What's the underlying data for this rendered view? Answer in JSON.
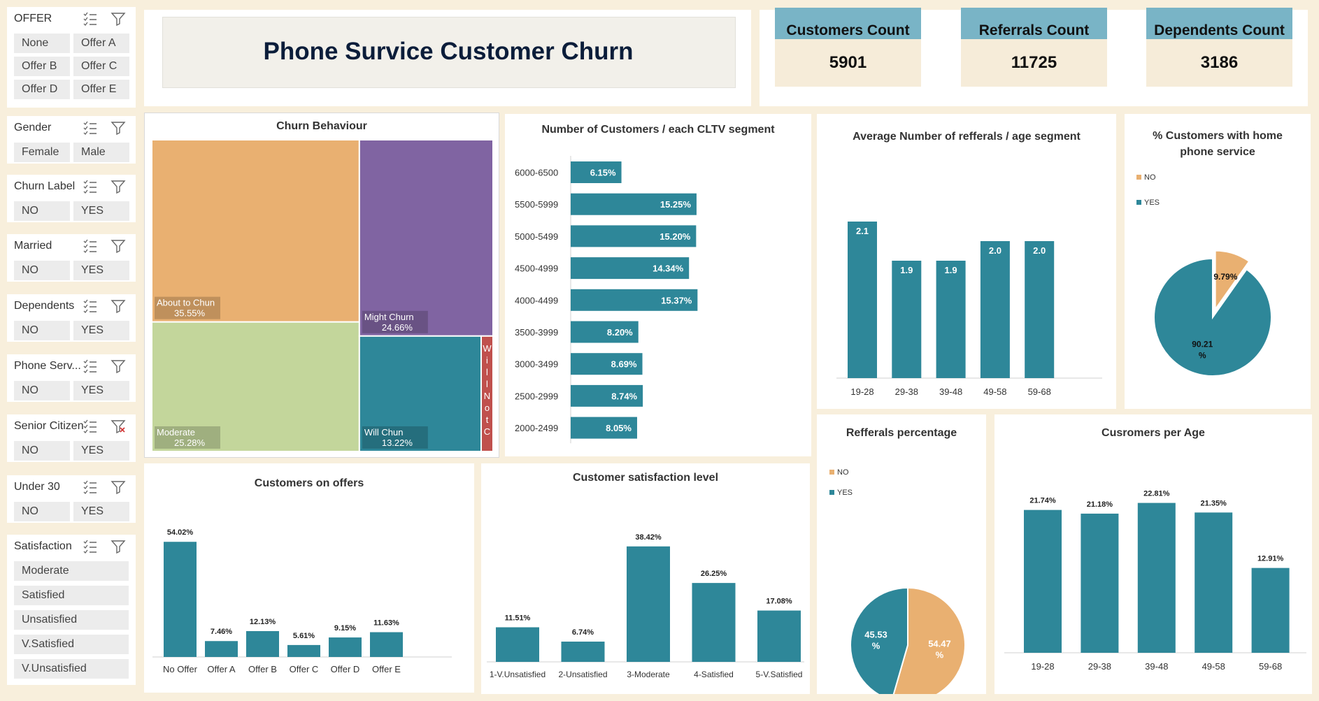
{
  "title": "Phone Survice Customer Churn",
  "colors": {
    "teal": "#2e8799",
    "orange": "#e9b071",
    "purple": "#8064a2",
    "green": "#c3d69b",
    "red": "#c0504d",
    "kpi_head": "#79b4c6",
    "kpi_body": "#f6ecd9"
  },
  "slicers": [
    {
      "header": "OFFER",
      "items": [
        "None",
        "Offer A",
        "Offer B",
        "Offer C",
        "Offer D",
        "Offer E"
      ]
    },
    {
      "header": "Gender",
      "items": [
        "Female",
        "Male"
      ]
    },
    {
      "header": "Churn Label",
      "items": [
        "NO",
        "YES"
      ]
    },
    {
      "header": "Married",
      "items": [
        "NO",
        "YES"
      ]
    },
    {
      "header": "Dependents",
      "items": [
        "NO",
        "YES"
      ]
    },
    {
      "header": "Phone Serv...",
      "items": [
        "NO",
        "YES"
      ]
    },
    {
      "header": "Senior Citizen",
      "items": [
        "NO",
        "YES"
      ]
    },
    {
      "header": "Under 30",
      "items": [
        "NO",
        "YES"
      ]
    },
    {
      "header": "Satisfaction",
      "items": [
        "Moderate",
        "Satisfied",
        "Unsatisfied",
        "V.Satisfied",
        "V.Unsatisfied"
      ]
    }
  ],
  "kpis": [
    {
      "label": "Customers Count",
      "value": "5901"
    },
    {
      "label": "Referrals Count",
      "value": "11725"
    },
    {
      "label": "Dependents Count",
      "value": "3186"
    }
  ],
  "chart_data": [
    {
      "id": "churn-treemap",
      "type": "treemap",
      "title": "Churn Behaviour",
      "items": [
        {
          "label": "About to Chun",
          "value": 35.55,
          "text": "35.55%"
        },
        {
          "label": "Moderate",
          "value": 25.28,
          "text": "25.28%"
        },
        {
          "label": "Might Churn",
          "value": 24.66,
          "text": "24.66%"
        },
        {
          "label": "Will Chun",
          "value": 13.22,
          "text": "13.22%"
        },
        {
          "label": "Will Not C",
          "value": 1.29
        }
      ]
    },
    {
      "id": "cltv",
      "type": "bar",
      "orientation": "horizontal",
      "title": "Number of Customers / each CLTV segment",
      "categories": [
        "6000-6500",
        "5500-5999",
        "5000-5499",
        "4500-4999",
        "4000-4499",
        "3500-3999",
        "3000-3499",
        "2500-2999",
        "2000-2499"
      ],
      "values": [
        6.15,
        15.25,
        15.2,
        14.34,
        15.37,
        8.2,
        8.69,
        8.74,
        8.05
      ],
      "labels": [
        "6.15%",
        "15.25%",
        "15.20%",
        "14.34%",
        "15.37%",
        "8.20%",
        "8.69%",
        "8.74%",
        "8.05%"
      ]
    },
    {
      "id": "referrals-age",
      "type": "bar",
      "title": "Average Number of refferals / age segment",
      "categories": [
        "19-28",
        "29-38",
        "39-48",
        "49-58",
        "59-68"
      ],
      "values": [
        2.1,
        1.9,
        1.9,
        2.0,
        2.0
      ],
      "labels": [
        "2.1",
        "1.9",
        "1.9",
        "2.0",
        "2.0"
      ]
    },
    {
      "id": "home-phone",
      "type": "pie",
      "title": "% Customers with home phone service",
      "legend": [
        "NO",
        "YES"
      ],
      "slices": [
        {
          "name": "NO",
          "value": 9.79,
          "text": "9.79%"
        },
        {
          "name": "YES",
          "value": 90.21,
          "text": "90.21 %"
        }
      ]
    },
    {
      "id": "offers",
      "type": "bar",
      "title": "Customers on offers",
      "categories": [
        "No Offer",
        "Offer A",
        "Offer B",
        "Offer C",
        "Offer D",
        "Offer E"
      ],
      "values": [
        54.02,
        7.46,
        12.13,
        5.61,
        9.15,
        11.63
      ],
      "labels": [
        "54.02%",
        "7.46%",
        "12.13%",
        "5.61%",
        "9.15%",
        "11.63%"
      ]
    },
    {
      "id": "satisfaction",
      "type": "bar",
      "title": "Customer satisfaction level",
      "categories": [
        "1-V.Unsatisfied",
        "2-Unsatisfied",
        "3-Moderate",
        "4-Satisfied",
        "5-V.Satisfied"
      ],
      "values": [
        11.51,
        6.74,
        38.42,
        26.25,
        17.08
      ],
      "labels": [
        "11.51%",
        "6.74%",
        "38.42%",
        "26.25%",
        "17.08%"
      ]
    },
    {
      "id": "referral-pct",
      "type": "pie",
      "title": "Refferals percentage",
      "legend": [
        "NO",
        "YES"
      ],
      "slices": [
        {
          "name": "NO",
          "value": 54.47,
          "text": "54.47 %"
        },
        {
          "name": "YES",
          "value": 45.53,
          "text": "45.53 %"
        }
      ]
    },
    {
      "id": "customers-age",
      "type": "bar",
      "title": "Cusromers per Age",
      "categories": [
        "19-28",
        "29-38",
        "39-48",
        "49-58",
        "59-68"
      ],
      "values": [
        21.74,
        21.18,
        22.81,
        21.35,
        12.91
      ],
      "labels": [
        "21.74%",
        "21.18%",
        "22.81%",
        "21.35%",
        "12.91%"
      ]
    }
  ]
}
